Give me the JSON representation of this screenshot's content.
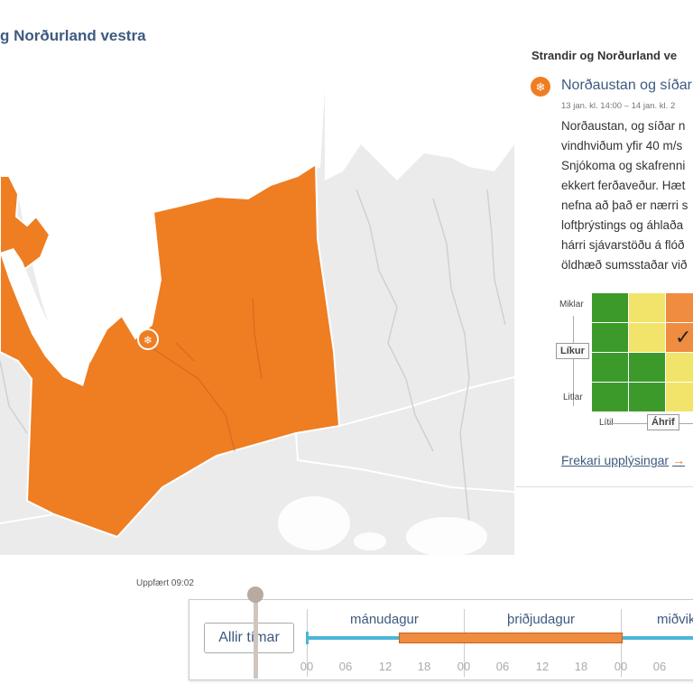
{
  "region_title": "g Norðurland vestra",
  "panel": {
    "heading": "Strandir og Norðurland ve",
    "warning_title": "Norðaustan og síðar",
    "warning_time": "13 jan. kl. 14:00 – 14 jan. kl. 2",
    "description_lines": [
      "Norðaustan, og síðar n",
      "vindhviðum yfir 40 m/s",
      "Snjókoma og skafrenni",
      "ekkert ferðaveður. Hæt",
      "nefna að það er nærri s",
      "loftþrýstings og áhlaða",
      "hárri sjávarstöðu á flóð",
      "öldhæð sumsstaðar við"
    ],
    "matrix": {
      "likelihood_high": "Miklar",
      "likelihood_low": "Litlar",
      "likelihood_button": "Líkur",
      "impact_low": "Lítil",
      "impact_button": "Áhrif",
      "cells": [
        [
          "green",
          "yellow",
          "orange"
        ],
        [
          "green",
          "yellow",
          "orange"
        ],
        [
          "green",
          "green",
          "yellow"
        ],
        [
          "green",
          "green",
          "yellow"
        ]
      ],
      "selected": "row 2, column 3",
      "check": "✓"
    },
    "more_info": "Frekari upplýsingar",
    "more_arrow": "→"
  },
  "timeline": {
    "updated": "Uppfært 09:02",
    "all_times_button": "Allir tímar",
    "days": [
      "mánudagur",
      "þriðjudagur",
      "miðvik"
    ],
    "ticks": [
      "00",
      "06",
      "12",
      "18",
      "00",
      "06",
      "12",
      "18",
      "00",
      "06"
    ]
  },
  "colors": {
    "warning_orange": "#ef7d22",
    "map_background": "#ebebeb",
    "link_blue": "#3d5a80",
    "timeline_blue": "#4db6d8"
  },
  "icons": {
    "warning": "snow-wind-icon",
    "matrix_check": "checkmark-icon",
    "link_arrow": "arrow-right-icon"
  }
}
